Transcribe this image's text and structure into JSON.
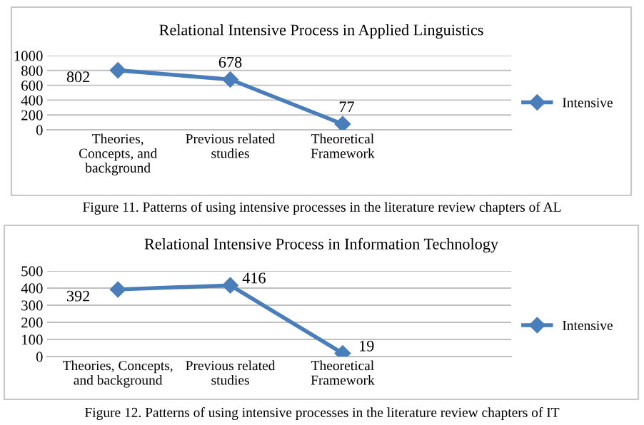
{
  "chart_data": [
    {
      "type": "line",
      "title": "Relational Intensive Process in Applied Linguistics",
      "categories": [
        "Theories,\nConcepts, and\nbackground",
        "Previous related\nstudies",
        "Theoretical\nFramework"
      ],
      "series": [
        {
          "name": "Intensive",
          "color": "#4a7ebb",
          "values": [
            802,
            678,
            77
          ]
        }
      ],
      "ylim": [
        0,
        1000
      ],
      "yticks": [
        0,
        200,
        400,
        600,
        800,
        1000
      ],
      "grid": "y",
      "legend": "right",
      "marker": "diamond",
      "line_style": "solid",
      "data_labels": true,
      "annotations": [
        "Figure 11. Patterns of using intensive processes in the literature review chapters of AL"
      ]
    },
    {
      "type": "line",
      "title": "Relational Intensive Process in Information Technology",
      "categories": [
        "Theories, Concepts,\nand background",
        "Previous related\nstudies",
        "Theoretical\nFramework"
      ],
      "series": [
        {
          "name": "Intensive",
          "color": "#4a7ebb",
          "values": [
            392,
            416,
            19
          ]
        }
      ],
      "ylim": [
        0,
        500
      ],
      "yticks": [
        0,
        100,
        200,
        300,
        400,
        500
      ],
      "grid": "y",
      "legend": "right",
      "marker": "diamond",
      "line_style": "solid",
      "data_labels": true,
      "annotations": [
        "Figure 12. Patterns of using intensive processes in the literature review chapters of IT"
      ]
    }
  ]
}
